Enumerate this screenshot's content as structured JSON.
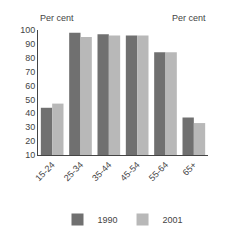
{
  "chart_data": {
    "type": "bar",
    "categories": [
      "15-24",
      "25-34",
      "35-44",
      "45-54",
      "55-64",
      "65+"
    ],
    "series": [
      {
        "name": "1990",
        "color": "#707070",
        "values": [
          44,
          98,
          97,
          96,
          84,
          37
        ]
      },
      {
        "name": "2001",
        "color": "#b8b8b8",
        "values": [
          47,
          95,
          96,
          96,
          84,
          33
        ]
      }
    ],
    "ylabel": "Per cent",
    "y2label": "Per cent",
    "ylim": [
      10,
      100
    ],
    "yticks": [
      10,
      20,
      30,
      40,
      50,
      60,
      70,
      80,
      90,
      100
    ],
    "y2lim": [
      10,
      100
    ],
    "y2ticks": [
      10,
      20,
      30,
      40,
      50,
      60,
      70,
      80,
      90,
      100
    ],
    "grid": false,
    "legend": "bottom"
  }
}
